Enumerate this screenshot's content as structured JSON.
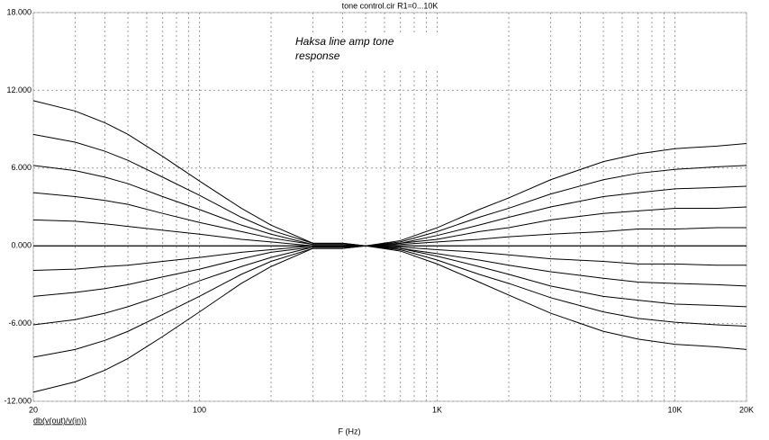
{
  "chart_data": {
    "type": "line",
    "title": "tone control.cir R1=0...10K",
    "annotation": "Haksa line amp tone response",
    "x_label": "F (Hz)",
    "y_label": "db(v(out)/v(in))",
    "xscale": "log",
    "grid": true,
    "xlim": [
      20,
      20000
    ],
    "ylim": [
      -12,
      18
    ],
    "xticks": [
      20,
      100,
      {
        "value": 1000,
        "label": "1K"
      },
      {
        "value": 10000,
        "label": "10K"
      },
      {
        "value": 20000,
        "label": "20K"
      }
    ],
    "xminor": [
      30,
      40,
      50,
      60,
      70,
      80,
      90,
      200,
      300,
      400,
      500,
      600,
      700,
      800,
      900,
      2000,
      3000,
      4000,
      5000,
      6000,
      7000,
      8000,
      9000
    ],
    "yticks": [
      {
        "value": 18,
        "label": "18.000"
      },
      {
        "value": 12,
        "label": "12.000"
      },
      {
        "value": 6,
        "label": "6.000"
      },
      {
        "value": 0,
        "label": "0.000"
      },
      {
        "value": -6,
        "label": "-6.000"
      },
      {
        "value": -12,
        "label": "-12.000"
      }
    ],
    "x": [
      20,
      30,
      40,
      50,
      70,
      100,
      150,
      200,
      300,
      400,
      500,
      700,
      1000,
      1500,
      2000,
      3000,
      5000,
      7000,
      10000,
      15000,
      20000
    ],
    "series": [
      {
        "color": "#000000",
        "values": [
          11.2,
          10.4,
          9.5,
          8.6,
          6.9,
          5.0,
          2.9,
          1.6,
          0.2,
          0.2,
          0,
          0.4,
          1.4,
          2.8,
          3.7,
          5.1,
          6.5,
          7.1,
          7.5,
          7.7,
          7.9
        ]
      },
      {
        "color": "#000000",
        "values": [
          8.6,
          8.0,
          7.3,
          6.6,
          5.3,
          3.9,
          2.2,
          1.2,
          0.2,
          0.2,
          0,
          0.3,
          1.1,
          2.2,
          2.9,
          4.0,
          5.1,
          5.6,
          5.9,
          6.1,
          6.2
        ]
      },
      {
        "color": "#000000",
        "values": [
          6.2,
          5.8,
          5.3,
          4.8,
          3.8,
          2.8,
          1.6,
          0.9,
          0.1,
          0.1,
          0,
          0.2,
          0.8,
          1.6,
          2.2,
          3.0,
          3.8,
          4.1,
          4.4,
          4.5,
          4.6
        ]
      },
      {
        "color": "#000000",
        "values": [
          4.1,
          3.8,
          3.5,
          3.2,
          2.5,
          1.8,
          1.1,
          0.6,
          0.1,
          0.1,
          0,
          0.2,
          0.5,
          1.1,
          1.4,
          2.0,
          2.5,
          2.7,
          2.9,
          2.9,
          3.0
        ]
      },
      {
        "color": "#000000",
        "values": [
          2.0,
          1.9,
          1.7,
          1.5,
          1.2,
          0.9,
          0.5,
          0.3,
          0,
          0,
          0,
          0.1,
          0.3,
          0.5,
          0.7,
          0.9,
          1.1,
          1.3,
          1.3,
          1.4,
          1.4
        ]
      },
      {
        "color": "#000000",
        "values": [
          0,
          0,
          0,
          0,
          0,
          0,
          0,
          0,
          0,
          0,
          0,
          0,
          0,
          0,
          0,
          0,
          0,
          0,
          0,
          0,
          0
        ]
      },
      {
        "color": "#000000",
        "values": [
          -1.9,
          -1.8,
          -1.6,
          -1.5,
          -1.2,
          -0.9,
          -0.5,
          -0.3,
          0,
          0,
          0,
          -0.1,
          -0.3,
          -0.5,
          -0.7,
          -1.0,
          -1.2,
          -1.4,
          -1.4,
          -1.5,
          -1.5
        ]
      },
      {
        "color": "#000000",
        "values": [
          -3.9,
          -3.6,
          -3.3,
          -3.0,
          -2.4,
          -1.8,
          -1.0,
          -0.5,
          -0.1,
          -0.1,
          0,
          -0.2,
          -0.6,
          -1.1,
          -1.5,
          -2.0,
          -2.5,
          -2.8,
          -2.9,
          -3.0,
          -3.1
        ]
      },
      {
        "color": "#000000",
        "values": [
          -6.1,
          -5.7,
          -5.2,
          -4.7,
          -3.8,
          -2.7,
          -1.6,
          -0.9,
          -0.1,
          -0.1,
          0,
          -0.2,
          -0.8,
          -1.6,
          -2.2,
          -3.1,
          -3.9,
          -4.2,
          -4.5,
          -4.6,
          -4.7
        ]
      },
      {
        "color": "#000000",
        "values": [
          -8.6,
          -8.0,
          -7.3,
          -6.6,
          -5.3,
          -3.9,
          -2.2,
          -1.2,
          -0.2,
          -0.2,
          0,
          -0.3,
          -1.1,
          -2.2,
          -2.9,
          -4.0,
          -5.1,
          -5.6,
          -5.9,
          -6.1,
          -6.2
        ]
      },
      {
        "color": "#000000",
        "values": [
          -11.3,
          -10.5,
          -9.6,
          -8.7,
          -7.0,
          -5.1,
          -2.9,
          -1.6,
          -0.2,
          -0.2,
          0,
          -0.4,
          -1.4,
          -2.8,
          -3.8,
          -5.2,
          -6.6,
          -7.2,
          -7.6,
          -7.8,
          -8.0
        ]
      }
    ]
  }
}
